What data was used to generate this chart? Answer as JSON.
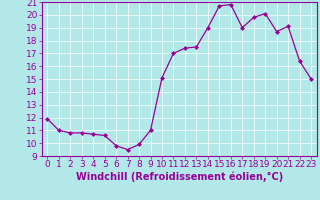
{
  "hours": [
    0,
    1,
    2,
    3,
    4,
    5,
    6,
    7,
    8,
    9,
    10,
    11,
    12,
    13,
    14,
    15,
    16,
    17,
    18,
    19,
    20,
    21,
    22,
    23
  ],
  "values": [
    11.9,
    11.0,
    10.8,
    10.8,
    10.7,
    10.6,
    9.8,
    9.5,
    9.9,
    11.0,
    15.1,
    17.0,
    17.4,
    17.5,
    19.0,
    20.7,
    20.8,
    19.0,
    19.8,
    20.1,
    18.7,
    19.1,
    16.4,
    15.0
  ],
  "line_color": "#990099",
  "marker": "D",
  "marker_size": 2,
  "bg_color": "#b3e8e8",
  "grid_color": "#ffffff",
  "xlabel": "Windchill (Refroidissement éolien,°C)",
  "ylim": [
    9,
    21
  ],
  "xlim": [
    -0.5,
    23.5
  ],
  "yticks": [
    9,
    10,
    11,
    12,
    13,
    14,
    15,
    16,
    17,
    18,
    19,
    20,
    21
  ],
  "xticks": [
    0,
    1,
    2,
    3,
    4,
    5,
    6,
    7,
    8,
    9,
    10,
    11,
    12,
    13,
    14,
    15,
    16,
    17,
    18,
    19,
    20,
    21,
    22,
    23
  ],
  "tick_color": "#990099",
  "label_color": "#990099",
  "tick_fontsize": 6.5,
  "xlabel_fontsize": 7
}
